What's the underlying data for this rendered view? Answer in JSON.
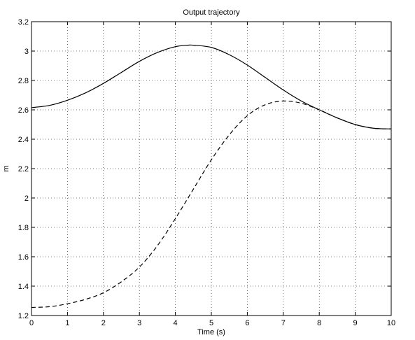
{
  "chart_data": {
    "type": "line",
    "title": "Output trajectory",
    "xlabel": "Time (s)",
    "ylabel": "m",
    "xlim": [
      0,
      10
    ],
    "ylim": [
      1.2,
      3.2
    ],
    "x_ticks": [
      "0",
      "1",
      "2",
      "3",
      "4",
      "5",
      "6",
      "7",
      "8",
      "9",
      "10"
    ],
    "y_ticks": [
      "1.2",
      "1.4",
      "1.6",
      "1.8",
      "2",
      "2.2",
      "2.4",
      "2.6",
      "2.8",
      "3",
      "3.2"
    ],
    "grid": true,
    "series": [
      {
        "line_style": "solid",
        "color": "#000000",
        "x": [
          0,
          0.5,
          1,
          1.5,
          2,
          2.5,
          3,
          3.5,
          4,
          4.35,
          4.5,
          5,
          5.5,
          6,
          6.5,
          7,
          7.5,
          8,
          8.5,
          9,
          9.5,
          10
        ],
        "y": [
          2.615,
          2.63,
          2.665,
          2.715,
          2.78,
          2.855,
          2.93,
          2.99,
          3.03,
          3.04,
          3.04,
          3.025,
          2.975,
          2.905,
          2.82,
          2.735,
          2.66,
          2.6,
          2.545,
          2.5,
          2.475,
          2.47
        ]
      },
      {
        "line_style": "dashed",
        "color": "#000000",
        "x": [
          0,
          0.5,
          1,
          1.5,
          2,
          2.5,
          3,
          3.5,
          4,
          4.5,
          5,
          5.5,
          6,
          6.5,
          7,
          7.5,
          8,
          8.5,
          9,
          9.5,
          10
        ],
        "y": [
          1.255,
          1.26,
          1.28,
          1.31,
          1.355,
          1.43,
          1.53,
          1.675,
          1.86,
          2.06,
          2.26,
          2.43,
          2.56,
          2.635,
          2.66,
          2.645,
          2.6,
          2.545,
          2.5,
          2.475,
          2.47
        ]
      }
    ]
  }
}
